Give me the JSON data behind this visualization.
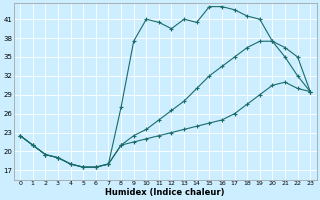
{
  "xlabel": "Humidex (Indice chaleur)",
  "background_color": "#cceeff",
  "grid_color": "#ffffff",
  "line_color": "#1a6b6b",
  "xlim": [
    -0.5,
    23.5
  ],
  "ylim": [
    15.5,
    43.5
  ],
  "yticks": [
    17,
    20,
    23,
    26,
    29,
    32,
    35,
    38,
    41
  ],
  "xticks": [
    0,
    1,
    2,
    3,
    4,
    5,
    6,
    7,
    8,
    9,
    10,
    11,
    12,
    13,
    14,
    15,
    16,
    17,
    18,
    19,
    20,
    21,
    22,
    23
  ],
  "curve1_x": [
    0,
    1,
    2,
    3,
    4,
    5,
    6,
    7,
    8,
    9,
    10,
    11,
    12,
    13,
    14,
    15,
    16,
    17,
    18,
    19,
    20,
    21,
    22,
    23
  ],
  "curve1_y": [
    22.5,
    21.0,
    19.5,
    19.0,
    18.0,
    17.5,
    17.5,
    18.0,
    27.0,
    37.5,
    41.0,
    40.5,
    39.5,
    41.0,
    40.5,
    43.0,
    43.0,
    42.5,
    41.5,
    41.0,
    37.5,
    35.0,
    32.0,
    29.5
  ],
  "curve2_x": [
    0,
    1,
    2,
    3,
    4,
    5,
    6,
    7,
    8,
    9,
    10,
    11,
    12,
    13,
    14,
    15,
    16,
    17,
    18,
    19,
    20,
    21,
    22,
    23
  ],
  "curve2_y": [
    22.5,
    21.0,
    19.5,
    19.0,
    18.0,
    17.5,
    17.5,
    18.0,
    21.0,
    22.5,
    23.5,
    25.0,
    26.5,
    28.0,
    30.0,
    32.0,
    33.5,
    35.0,
    36.5,
    37.5,
    37.5,
    36.5,
    35.0,
    29.5
  ],
  "curve3_x": [
    0,
    1,
    2,
    3,
    4,
    5,
    6,
    7,
    8,
    9,
    10,
    11,
    12,
    13,
    14,
    15,
    16,
    17,
    18,
    19,
    20,
    21,
    22,
    23
  ],
  "curve3_y": [
    22.5,
    21.0,
    19.5,
    19.0,
    18.0,
    17.5,
    17.5,
    18.0,
    21.0,
    21.5,
    22.0,
    22.5,
    23.0,
    23.5,
    24.0,
    24.5,
    25.0,
    26.0,
    27.5,
    29.0,
    30.5,
    31.0,
    30.0,
    29.5
  ]
}
